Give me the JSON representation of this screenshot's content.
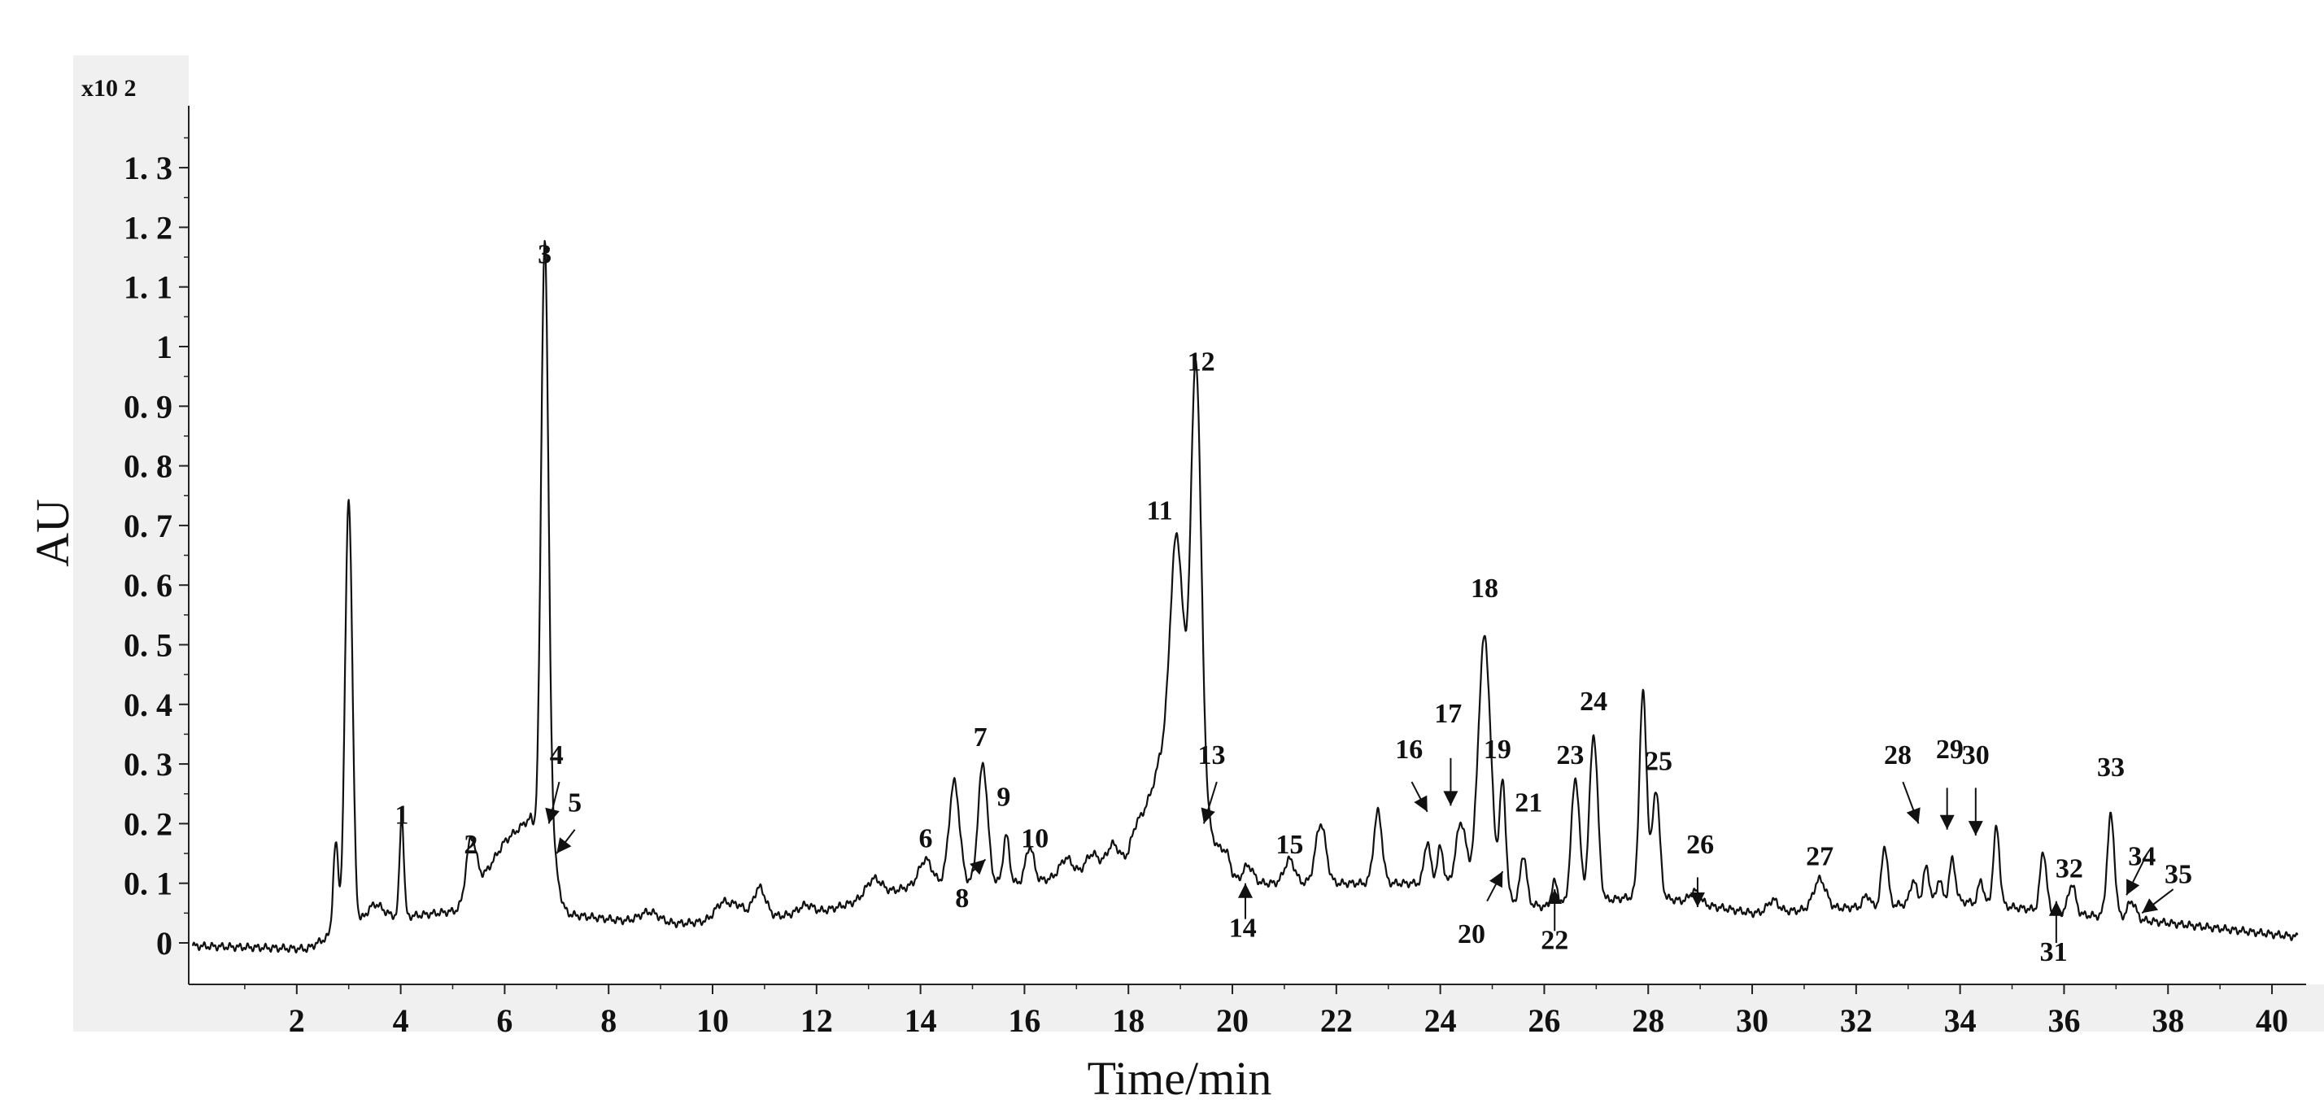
{
  "chart_data": {
    "type": "line",
    "title": "",
    "xlabel": "Time/min",
    "ylabel": "AU",
    "y_multiplier": "x10 2",
    "xlim": [
      0,
      40.5
    ],
    "ylim": [
      -0.08,
      1.4
    ],
    "x_ticks": [
      "2",
      "4",
      "6",
      "8",
      "10",
      "12",
      "14",
      "16",
      "18",
      "20",
      "22",
      "24",
      "26",
      "28",
      "30",
      "32",
      "34",
      "36",
      "38",
      "40"
    ],
    "y_ticks": [
      "0",
      "0. 1",
      "0. 2",
      "0. 3",
      "0. 4",
      "0. 5",
      "0. 6",
      "0. 7",
      "0. 8",
      "0. 9",
      "1",
      "1. 1",
      "1. 2",
      "1. 3"
    ],
    "grid": false,
    "baseline": [
      [
        0,
        -0.005
      ],
      [
        2.2,
        -0.01
      ],
      [
        2.6,
        0.01
      ],
      [
        3.5,
        0.045
      ],
      [
        4.2,
        0.045
      ],
      [
        5.2,
        0.055
      ],
      [
        6.0,
        0.17
      ],
      [
        6.5,
        0.21
      ],
      [
        7.0,
        0.05
      ],
      [
        9,
        0.03
      ],
      [
        12,
        0.05
      ],
      [
        14,
        0.1
      ],
      [
        16,
        0.1
      ],
      [
        18,
        0.13
      ],
      [
        18.6,
        0.3
      ],
      [
        19.5,
        0.2
      ],
      [
        20,
        0.1
      ],
      [
        22,
        0.1
      ],
      [
        24,
        0.1
      ],
      [
        26,
        0.06
      ],
      [
        28,
        0.08
      ],
      [
        30,
        0.05
      ],
      [
        32,
        0.06
      ],
      [
        34,
        0.07
      ],
      [
        36,
        0.05
      ],
      [
        37.3,
        0.04
      ],
      [
        40.5,
        0.01
      ]
    ],
    "peaks": [
      {
        "x": 2.75,
        "h": 0.15,
        "w": 0.05
      },
      {
        "x": 3.0,
        "h": 0.72,
        "w": 0.07
      },
      {
        "x": 3.5,
        "h": 0.02,
        "w": 0.15
      },
      {
        "x": 4.02,
        "h": 0.17,
        "w": 0.04
      },
      {
        "x": 5.35,
        "h": 0.1,
        "w": 0.1
      },
      {
        "x": 6.77,
        "h": 1.0,
        "w": 0.07
      },
      {
        "x": 6.9,
        "h": 0.1,
        "w": 0.12
      },
      {
        "x": 8.8,
        "h": 0.02,
        "w": 0.2
      },
      {
        "x": 10.2,
        "h": 0.03,
        "w": 0.15
      },
      {
        "x": 10.5,
        "h": 0.02,
        "w": 0.12
      },
      {
        "x": 10.9,
        "h": 0.05,
        "w": 0.12
      },
      {
        "x": 11.8,
        "h": 0.015,
        "w": 0.15
      },
      {
        "x": 13.1,
        "h": 0.03,
        "w": 0.15
      },
      {
        "x": 14.1,
        "h": 0.04,
        "w": 0.12
      },
      {
        "x": 14.65,
        "h": 0.17,
        "w": 0.1
      },
      {
        "x": 15.2,
        "h": 0.2,
        "w": 0.09
      },
      {
        "x": 15.65,
        "h": 0.08,
        "w": 0.06
      },
      {
        "x": 16.1,
        "h": 0.06,
        "w": 0.08
      },
      {
        "x": 16.8,
        "h": 0.03,
        "w": 0.12
      },
      {
        "x": 17.3,
        "h": 0.03,
        "w": 0.12
      },
      {
        "x": 17.7,
        "h": 0.04,
        "w": 0.12
      },
      {
        "x": 18.1,
        "h": 0.03,
        "w": 0.12
      },
      {
        "x": 18.93,
        "h": 0.42,
        "w": 0.13
      },
      {
        "x": 19.3,
        "h": 0.75,
        "w": 0.1
      },
      {
        "x": 19.9,
        "h": 0.03,
        "w": 0.1
      },
      {
        "x": 20.3,
        "h": 0.03,
        "w": 0.1
      },
      {
        "x": 21.1,
        "h": 0.04,
        "w": 0.1
      },
      {
        "x": 21.7,
        "h": 0.1,
        "w": 0.1
      },
      {
        "x": 22.8,
        "h": 0.12,
        "w": 0.08
      },
      {
        "x": 23.75,
        "h": 0.07,
        "w": 0.06
      },
      {
        "x": 24.0,
        "h": 0.06,
        "w": 0.06
      },
      {
        "x": 24.4,
        "h": 0.11,
        "w": 0.1
      },
      {
        "x": 24.85,
        "h": 0.43,
        "w": 0.12
      },
      {
        "x": 25.2,
        "h": 0.19,
        "w": 0.06
      },
      {
        "x": 25.6,
        "h": 0.08,
        "w": 0.06
      },
      {
        "x": 26.2,
        "h": 0.04,
        "w": 0.06
      },
      {
        "x": 26.6,
        "h": 0.21,
        "w": 0.08
      },
      {
        "x": 26.95,
        "h": 0.28,
        "w": 0.08
      },
      {
        "x": 27.9,
        "h": 0.34,
        "w": 0.07
      },
      {
        "x": 28.15,
        "h": 0.18,
        "w": 0.07
      },
      {
        "x": 28.9,
        "h": 0.02,
        "w": 0.1
      },
      {
        "x": 30.4,
        "h": 0.02,
        "w": 0.1
      },
      {
        "x": 31.3,
        "h": 0.05,
        "w": 0.12
      },
      {
        "x": 32.2,
        "h": 0.02,
        "w": 0.06
      },
      {
        "x": 32.55,
        "h": 0.1,
        "w": 0.06
      },
      {
        "x": 33.1,
        "h": 0.04,
        "w": 0.06
      },
      {
        "x": 33.35,
        "h": 0.06,
        "w": 0.06
      },
      {
        "x": 33.6,
        "h": 0.04,
        "w": 0.05
      },
      {
        "x": 33.85,
        "h": 0.07,
        "w": 0.06
      },
      {
        "x": 34.4,
        "h": 0.04,
        "w": 0.05
      },
      {
        "x": 34.7,
        "h": 0.13,
        "w": 0.06
      },
      {
        "x": 35.6,
        "h": 0.1,
        "w": 0.06
      },
      {
        "x": 36.15,
        "h": 0.05,
        "w": 0.07
      },
      {
        "x": 36.9,
        "h": 0.17,
        "w": 0.07
      },
      {
        "x": 37.3,
        "h": 0.03,
        "w": 0.08
      }
    ],
    "annotations": [
      {
        "label": "1",
        "x": 4.02,
        "y": 0.2
      },
      {
        "label": "2",
        "x": 5.35,
        "y": 0.15
      },
      {
        "label": "3",
        "x": 6.77,
        "y": 1.14
      },
      {
        "label": "4",
        "x": 7.0,
        "y": 0.3
      },
      {
        "label": "5",
        "x": 7.35,
        "y": 0.22
      },
      {
        "label": "6",
        "x": 14.1,
        "y": 0.16
      },
      {
        "label": "7",
        "x": 15.15,
        "y": 0.33
      },
      {
        "label": "8",
        "x": 14.8,
        "y": 0.06
      },
      {
        "label": "9",
        "x": 15.6,
        "y": 0.23
      },
      {
        "label": "10",
        "x": 16.2,
        "y": 0.16
      },
      {
        "label": "11",
        "x": 18.6,
        "y": 0.71
      },
      {
        "label": "12",
        "x": 19.4,
        "y": 0.96
      },
      {
        "label": "13",
        "x": 19.6,
        "y": 0.3
      },
      {
        "label": "14",
        "x": 20.2,
        "y": 0.01
      },
      {
        "label": "15",
        "x": 21.1,
        "y": 0.15
      },
      {
        "label": "16",
        "x": 23.4,
        "y": 0.31
      },
      {
        "label": "17",
        "x": 24.15,
        "y": 0.37
      },
      {
        "label": "18",
        "x": 24.85,
        "y": 0.58
      },
      {
        "label": "19",
        "x": 25.1,
        "y": 0.31
      },
      {
        "label": "20",
        "x": 24.6,
        "y": 0.0
      },
      {
        "label": "21",
        "x": 25.7,
        "y": 0.22
      },
      {
        "label": "22",
        "x": 26.2,
        "y": -0.01
      },
      {
        "label": "23",
        "x": 26.5,
        "y": 0.3
      },
      {
        "label": "24",
        "x": 26.95,
        "y": 0.39
      },
      {
        "label": "25",
        "x": 28.2,
        "y": 0.29
      },
      {
        "label": "26",
        "x": 29.0,
        "y": 0.15
      },
      {
        "label": "27",
        "x": 31.3,
        "y": 0.13
      },
      {
        "label": "28",
        "x": 32.8,
        "y": 0.3
      },
      {
        "label": "29",
        "x": 33.8,
        "y": 0.31
      },
      {
        "label": "30",
        "x": 34.3,
        "y": 0.3
      },
      {
        "label": "31",
        "x": 35.8,
        "y": -0.03
      },
      {
        "label": "32",
        "x": 36.1,
        "y": 0.11
      },
      {
        "label": "33",
        "x": 36.9,
        "y": 0.28
      },
      {
        "label": "34",
        "x": 37.5,
        "y": 0.13
      },
      {
        "label": "35",
        "x": 38.2,
        "y": 0.1
      }
    ],
    "arrows": [
      {
        "from": [
          7.05,
          0.27
        ],
        "to": [
          6.85,
          0.2
        ]
      },
      {
        "from": [
          7.35,
          0.19
        ],
        "to": [
          7.0,
          0.15
        ]
      },
      {
        "from": [
          15.0,
          0.12
        ],
        "to": [
          15.25,
          0.14
        ]
      },
      {
        "from": [
          19.7,
          0.27
        ],
        "to": [
          19.45,
          0.2
        ]
      },
      {
        "from": [
          20.25,
          0.04
        ],
        "to": [
          20.25,
          0.1
        ]
      },
      {
        "from": [
          23.45,
          0.27
        ],
        "to": [
          23.75,
          0.22
        ]
      },
      {
        "from": [
          24.2,
          0.31
        ],
        "to": [
          24.2,
          0.23
        ]
      },
      {
        "from": [
          24.9,
          0.07
        ],
        "to": [
          25.2,
          0.12
        ]
      },
      {
        "from": [
          26.2,
          0.02
        ],
        "to": [
          26.2,
          0.09
        ]
      },
      {
        "from": [
          28.95,
          0.11
        ],
        "to": [
          28.95,
          0.06
        ]
      },
      {
        "from": [
          32.9,
          0.27
        ],
        "to": [
          33.2,
          0.2
        ]
      },
      {
        "from": [
          33.75,
          0.26
        ],
        "to": [
          33.75,
          0.19
        ]
      },
      {
        "from": [
          34.3,
          0.26
        ],
        "to": [
          34.3,
          0.18
        ]
      },
      {
        "from": [
          35.85,
          0.0
        ],
        "to": [
          35.85,
          0.07
        ]
      },
      {
        "from": [
          37.6,
          0.15
        ],
        "to": [
          37.2,
          0.08
        ]
      },
      {
        "from": [
          38.1,
          0.09
        ],
        "to": [
          37.5,
          0.05
        ]
      }
    ]
  }
}
